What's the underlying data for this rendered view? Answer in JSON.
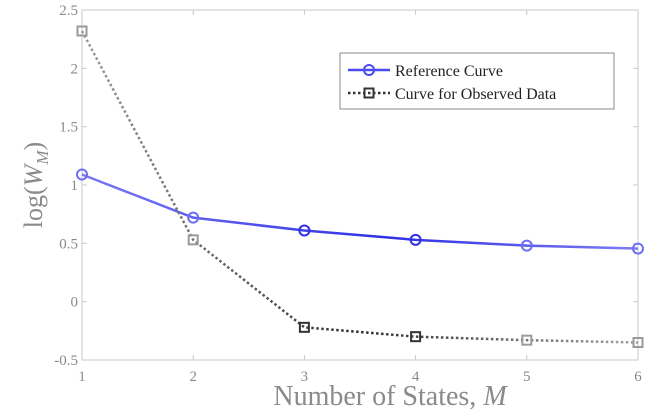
{
  "chart_data": {
    "type": "line",
    "title": "",
    "xlabel": "Number of States, ",
    "xlabel_var": "M",
    "ylabel_prefix": "log(",
    "ylabel_var": "W",
    "ylabel_sub": "M",
    "ylabel_suffix": ")",
    "x": [
      1,
      2,
      3,
      4,
      5,
      6
    ],
    "xticks": [
      "1",
      "2",
      "3",
      "4",
      "5",
      "6"
    ],
    "yticks": [
      "2.5",
      "2",
      "1.5",
      "1",
      "0.5",
      "0",
      "-0.5"
    ],
    "xlim": [
      1,
      6
    ],
    "ylim": [
      -0.5,
      2.5
    ],
    "grid": false,
    "legend_position": "top-right",
    "series": [
      {
        "name": "Reference Curve",
        "values": [
          1.09,
          0.72,
          0.61,
          0.53,
          0.48,
          0.455
        ],
        "color": "#3a3af0",
        "marker": "circle",
        "line_style": "solid"
      },
      {
        "name": "Curve for Observed Data",
        "values": [
          2.32,
          0.53,
          -0.22,
          -0.3,
          -0.33,
          -0.35
        ],
        "color": "#333333",
        "marker": "square",
        "line_style": "dotted"
      }
    ]
  }
}
